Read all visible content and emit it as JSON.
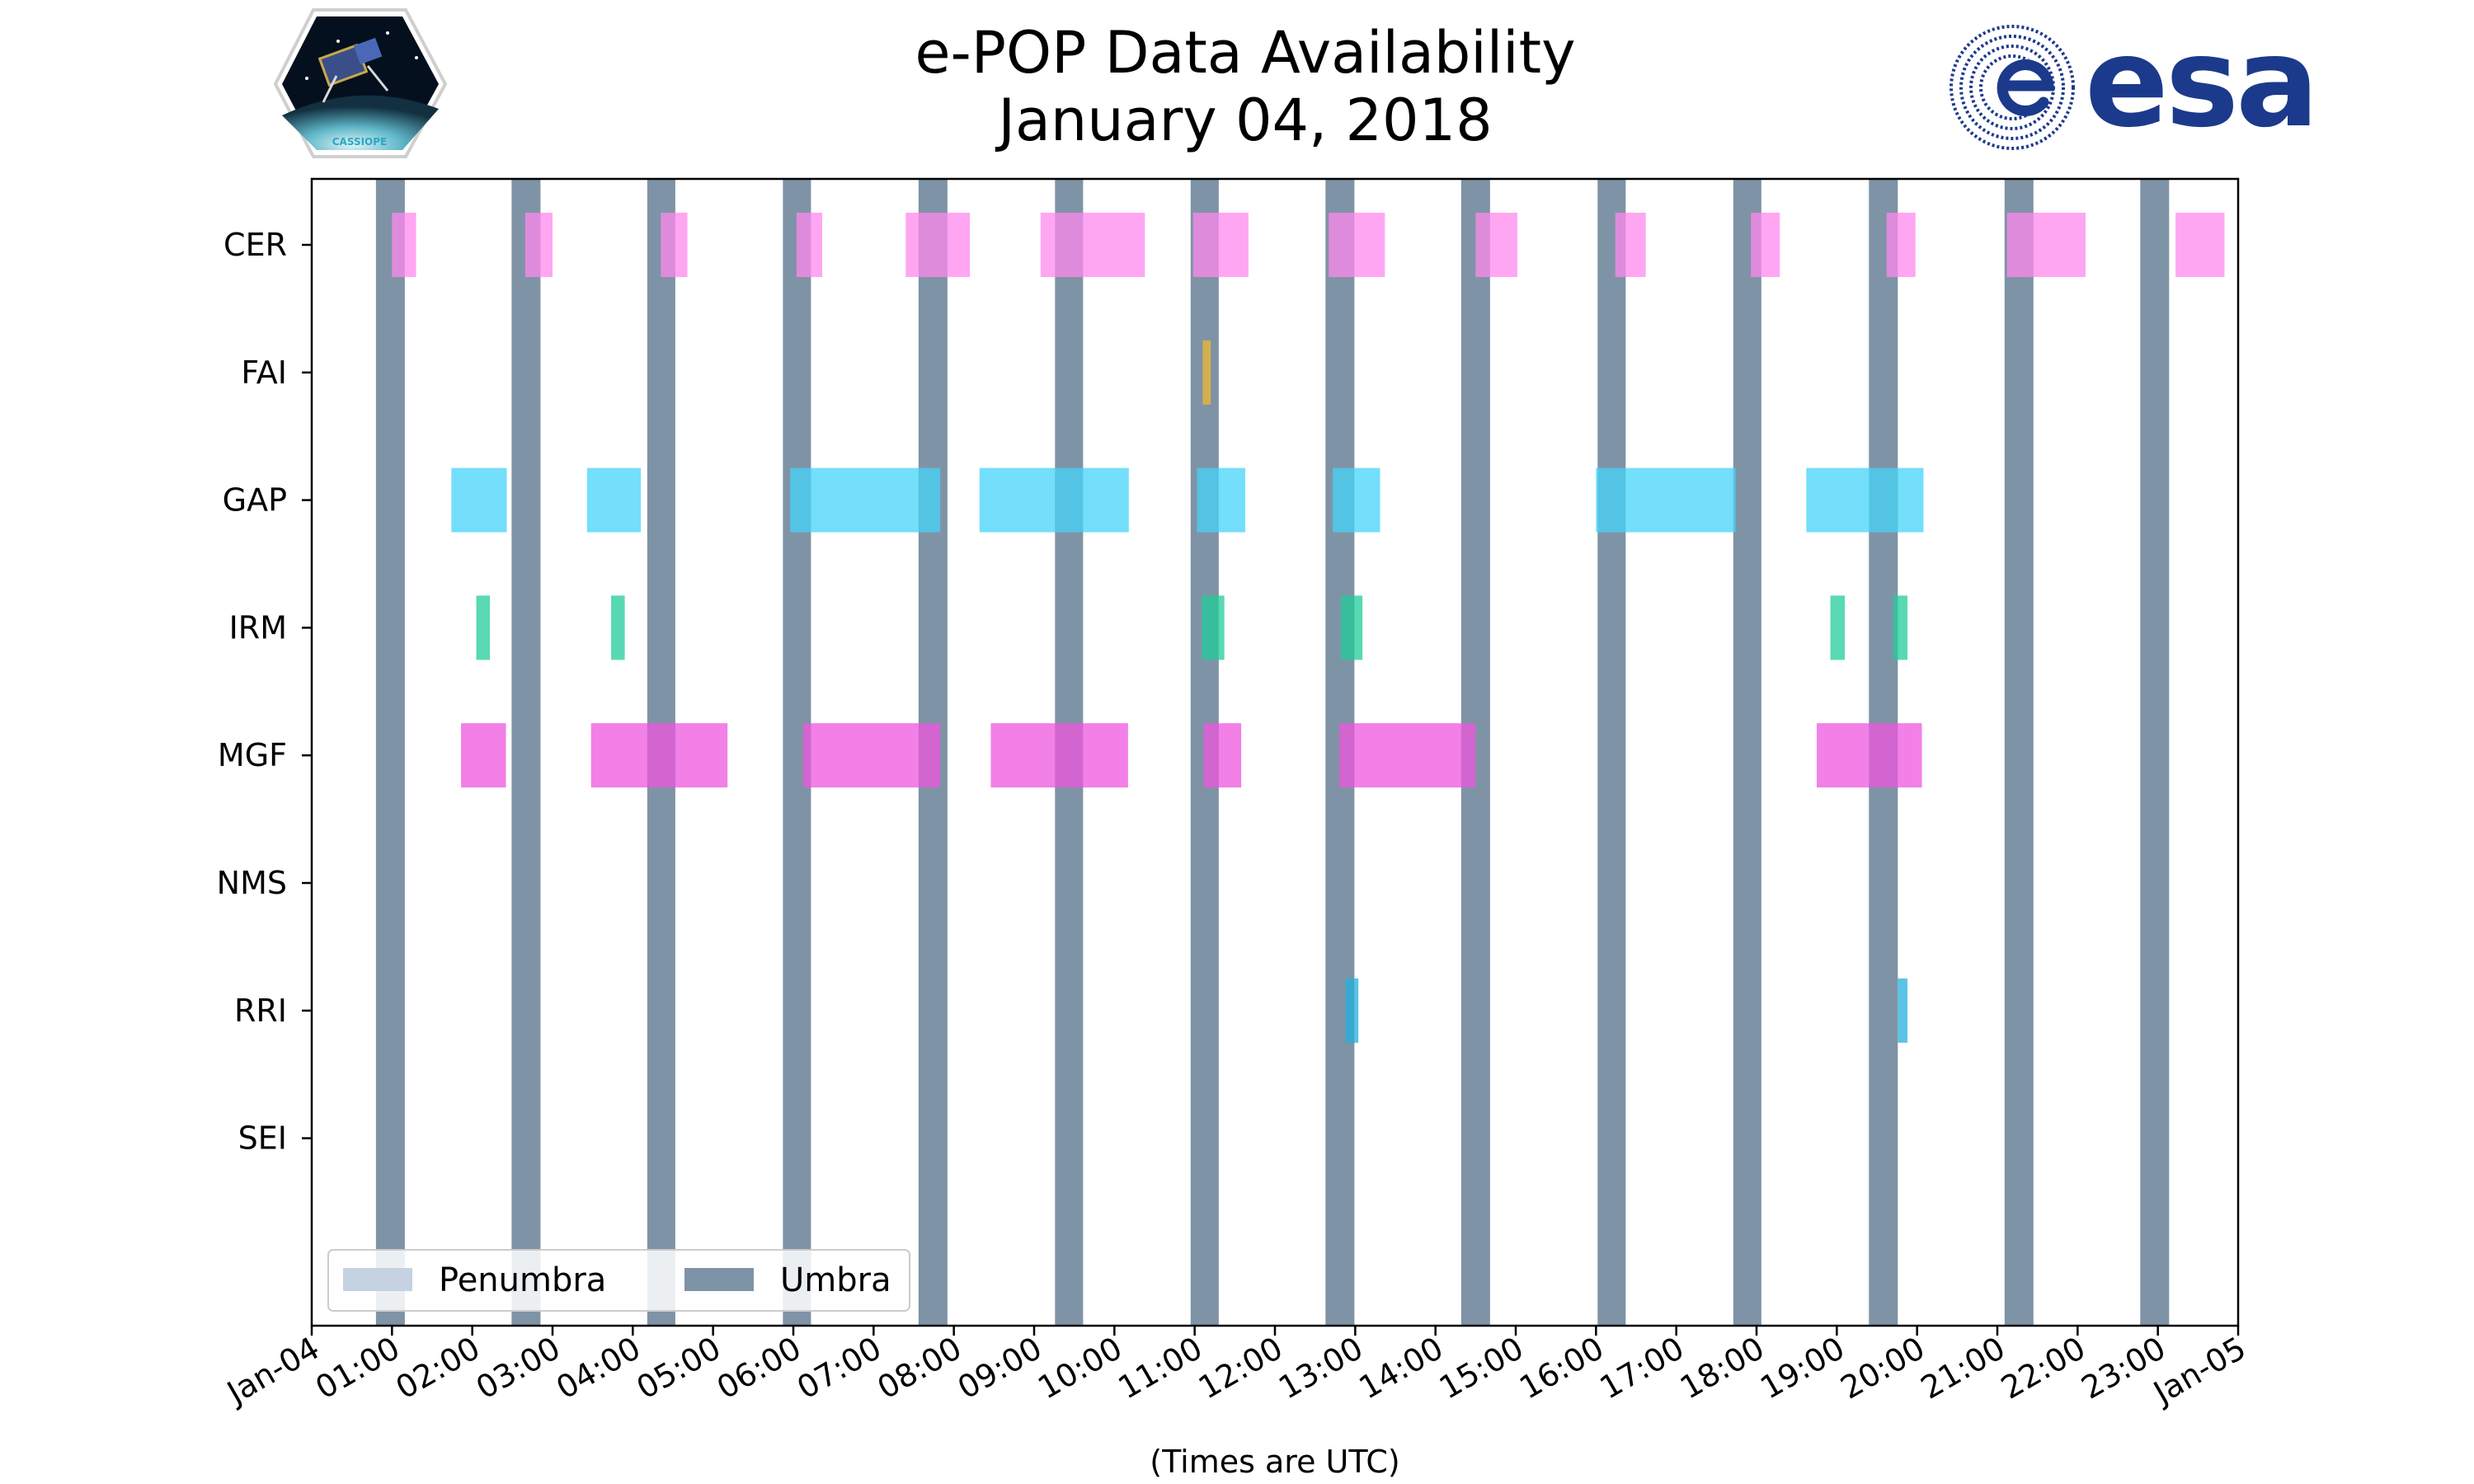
{
  "chart_data": {
    "type": "timeline",
    "title_line1": "e-POP Data Availability",
    "title_line2": "January 04, 2018",
    "xlabel": "(Times are UTC)",
    "x_range_hours": [
      0,
      24
    ],
    "x_tick_labels": [
      "Jan-04",
      "01:00",
      "02:00",
      "03:00",
      "04:00",
      "05:00",
      "06:00",
      "07:00",
      "08:00",
      "09:00",
      "10:00",
      "11:00",
      "12:00",
      "13:00",
      "14:00",
      "15:00",
      "16:00",
      "17:00",
      "18:00",
      "19:00",
      "20:00",
      "21:00",
      "22:00",
      "23:00",
      "Jan-05"
    ],
    "instruments": [
      "CER",
      "FAI",
      "GAP",
      "IRM",
      "MGF",
      "NMS",
      "RRI",
      "SEI"
    ],
    "umbra_intervals": [
      [
        0.8,
        1.16
      ],
      [
        2.49,
        2.85
      ],
      [
        4.18,
        4.53
      ],
      [
        5.87,
        6.22
      ],
      [
        7.56,
        7.92
      ],
      [
        9.26,
        9.61
      ],
      [
        10.95,
        11.3
      ],
      [
        12.63,
        12.99
      ],
      [
        14.32,
        14.68
      ],
      [
        16.02,
        16.37
      ],
      [
        17.71,
        18.06
      ],
      [
        19.4,
        19.76
      ],
      [
        21.09,
        21.45
      ],
      [
        22.78,
        23.14
      ]
    ],
    "penumbra_intervals": [],
    "series": [
      {
        "name": "CER",
        "color": "#ff88ee",
        "intervals": [
          [
            1.0,
            1.3
          ],
          [
            2.66,
            3.0
          ],
          [
            4.35,
            4.68
          ],
          [
            6.04,
            6.36
          ],
          [
            7.4,
            8.2
          ],
          [
            9.08,
            10.38
          ],
          [
            10.98,
            11.67
          ],
          [
            12.67,
            13.37
          ],
          [
            14.5,
            15.02
          ],
          [
            16.24,
            16.62
          ],
          [
            17.93,
            18.29
          ],
          [
            19.62,
            19.98
          ],
          [
            21.12,
            22.1
          ],
          [
            23.22,
            23.83
          ]
        ]
      },
      {
        "name": "FAI",
        "color": "#f0b830",
        "intervals": [
          [
            11.1,
            11.2
          ]
        ]
      },
      {
        "name": "GAP",
        "color": "#44d4f8",
        "intervals": [
          [
            1.74,
            2.43
          ],
          [
            3.43,
            4.1
          ],
          [
            5.96,
            7.83
          ],
          [
            8.32,
            10.18
          ],
          [
            11.03,
            11.63
          ],
          [
            12.72,
            13.31
          ],
          [
            16.0,
            17.74
          ],
          [
            18.62,
            20.08
          ]
        ]
      },
      {
        "name": "IRM",
        "color": "#22cc99",
        "intervals": [
          [
            2.05,
            2.22
          ],
          [
            3.73,
            3.9
          ],
          [
            11.09,
            11.37
          ],
          [
            12.82,
            13.09
          ],
          [
            18.92,
            19.1
          ],
          [
            19.7,
            19.88
          ]
        ]
      },
      {
        "name": "MGF",
        "color": "#ee55dd",
        "intervals": [
          [
            1.86,
            2.42
          ],
          [
            3.48,
            5.18
          ],
          [
            6.12,
            7.83
          ],
          [
            8.46,
            10.17
          ],
          [
            11.11,
            11.58
          ],
          [
            12.8,
            14.5
          ],
          [
            18.75,
            20.06
          ]
        ]
      },
      {
        "name": "NMS",
        "color": "#888888",
        "intervals": []
      },
      {
        "name": "RRI",
        "color": "#22b0dd",
        "intervals": [
          [
            12.88,
            13.04
          ],
          [
            19.76,
            19.88
          ]
        ]
      },
      {
        "name": "SEI",
        "color": "#888888",
        "intervals": []
      }
    ],
    "legend": [
      {
        "label": "Penumbra",
        "color": "#c5d2e2"
      },
      {
        "label": "Umbra",
        "color": "#7f93a6"
      }
    ],
    "legend_position": "lower-left"
  },
  "logos": {
    "cassiope_badge_text": "CASSIOPE",
    "esa_wordmark": "esa"
  },
  "colors": {
    "umbra": "#7f93a6",
    "penumbra": "#c5d2e2",
    "esa_blue": "#1c3a8c"
  }
}
